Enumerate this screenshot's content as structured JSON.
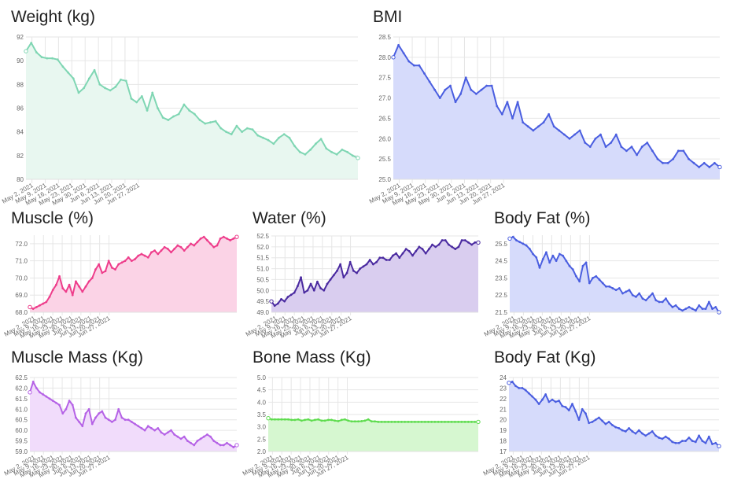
{
  "x_ticks": [
    "May 2, 2021",
    "May 9, 2021",
    "May 16, 2021",
    "May 23, 2021",
    "May 30, 2021",
    "Jun 6, 2021",
    "Jun 13, 2021",
    "Jun 20, 2021",
    "Jun 27, 2021"
  ],
  "chart_data": [
    {
      "id": "weight",
      "type": "area",
      "title": "Weight (kg)",
      "ylim": [
        80,
        92
      ],
      "yticks": [
        80,
        82,
        84,
        86,
        88,
        90,
        92
      ],
      "ytick_labels": [
        "80",
        "82",
        "84",
        "86",
        "88",
        "90",
        "92"
      ],
      "color": "#7fd6b3",
      "fill": "#e8f7f0",
      "x": [
        0,
        1,
        2,
        3,
        4,
        5,
        6,
        7,
        8,
        9,
        10,
        11,
        12,
        13,
        14,
        15,
        16,
        17,
        18,
        19,
        20,
        21,
        22,
        23,
        24,
        25,
        26,
        27,
        28,
        29,
        30,
        31,
        32,
        33,
        34,
        35,
        36,
        37,
        38,
        39,
        40,
        41,
        42,
        43,
        44,
        45,
        46,
        47,
        48,
        49,
        50,
        51,
        52,
        53,
        54,
        55,
        56,
        57,
        58,
        59,
        60,
        61,
        62,
        63
      ],
      "values": [
        90.8,
        91.5,
        90.7,
        90.3,
        90.2,
        90.2,
        90.1,
        89.5,
        89.0,
        88.5,
        87.3,
        87.7,
        88.5,
        89.2,
        88.0,
        87.7,
        87.5,
        87.8,
        88.4,
        88.3,
        86.8,
        86.5,
        87.0,
        85.8,
        87.3,
        86.0,
        85.2,
        85.0,
        85.3,
        85.5,
        86.3,
        85.8,
        85.5,
        85.0,
        84.7,
        84.8,
        84.9,
        84.3,
        84.0,
        83.8,
        84.5,
        84.0,
        84.3,
        84.2,
        83.7,
        83.5,
        83.3,
        83.0,
        83.5,
        83.8,
        83.5,
        82.8,
        82.3,
        82.1,
        82.5,
        83.0,
        83.4,
        82.6,
        82.3,
        82.1,
        82.5,
        82.3,
        82.0,
        81.8
      ]
    },
    {
      "id": "bmi",
      "type": "area",
      "title": "BMI",
      "ylim": [
        25.0,
        28.5
      ],
      "yticks": [
        25.0,
        25.5,
        26.0,
        26.5,
        27.0,
        27.5,
        28.0,
        28.5
      ],
      "ytick_labels": [
        "25.0",
        "25.5",
        "26.0",
        "26.5",
        "27.0",
        "27.5",
        "28.0",
        "28.5"
      ],
      "color": "#4a5ee0",
      "fill": "#d6dbfb",
      "x": [
        0,
        1,
        2,
        3,
        4,
        5,
        6,
        7,
        8,
        9,
        10,
        11,
        12,
        13,
        14,
        15,
        16,
        17,
        18,
        19,
        20,
        21,
        22,
        23,
        24,
        25,
        26,
        27,
        28,
        29,
        30,
        31,
        32,
        33,
        34,
        35,
        36,
        37,
        38,
        39,
        40,
        41,
        42,
        43,
        44,
        45,
        46,
        47,
        48,
        49,
        50,
        51,
        52,
        53,
        54,
        55,
        56,
        57,
        58,
        59,
        60,
        61,
        62,
        63
      ],
      "values": [
        28.0,
        28.3,
        28.1,
        27.9,
        27.8,
        27.8,
        27.6,
        27.4,
        27.2,
        27.0,
        27.2,
        27.3,
        26.9,
        27.1,
        27.5,
        27.2,
        27.1,
        27.2,
        27.3,
        27.3,
        26.8,
        26.6,
        26.9,
        26.5,
        26.9,
        26.4,
        26.3,
        26.2,
        26.3,
        26.4,
        26.6,
        26.3,
        26.2,
        26.1,
        26.0,
        26.1,
        26.2,
        25.9,
        25.8,
        26.0,
        26.1,
        25.8,
        25.9,
        26.1,
        25.8,
        25.7,
        25.8,
        25.6,
        25.8,
        25.9,
        25.7,
        25.5,
        25.4,
        25.4,
        25.5,
        25.7,
        25.7,
        25.5,
        25.4,
        25.3,
        25.4,
        25.3,
        25.4,
        25.3
      ]
    },
    {
      "id": "muscle",
      "type": "area",
      "title": "Muscle (%)",
      "ylim": [
        68.0,
        72.5
      ],
      "yticks": [
        68.0,
        69.0,
        70.0,
        71.0,
        72.0
      ],
      "ytick_labels": [
        "68.0",
        "69.0",
        "70.0",
        "71.0",
        "72.0"
      ],
      "color": "#ee3d8b",
      "fill": "#fbd3e6",
      "x": [
        0,
        1,
        2,
        3,
        4,
        5,
        6,
        7,
        8,
        9,
        10,
        11,
        12,
        13,
        14,
        15,
        16,
        17,
        18,
        19,
        20,
        21,
        22,
        23,
        24,
        25,
        26,
        27,
        28,
        29,
        30,
        31,
        32,
        33,
        34,
        35,
        36,
        37,
        38,
        39,
        40,
        41,
        42,
        43,
        44,
        45,
        46,
        47,
        48,
        49,
        50,
        51,
        52,
        53,
        54,
        55,
        56,
        57,
        58,
        59,
        60,
        61,
        62,
        63
      ],
      "values": [
        68.3,
        68.2,
        68.3,
        68.4,
        68.5,
        68.6,
        68.9,
        69.3,
        69.6,
        70.1,
        69.4,
        69.2,
        69.6,
        69.0,
        69.8,
        69.5,
        69.2,
        69.5,
        69.8,
        70.0,
        70.5,
        70.8,
        70.3,
        70.4,
        71.0,
        70.6,
        70.5,
        70.8,
        70.9,
        71.0,
        71.2,
        71.0,
        71.1,
        71.3,
        71.4,
        71.3,
        71.2,
        71.5,
        71.6,
        71.4,
        71.6,
        71.8,
        71.7,
        71.5,
        71.7,
        71.9,
        71.8,
        71.6,
        71.8,
        72.0,
        71.9,
        72.1,
        72.3,
        72.4,
        72.2,
        72.0,
        71.8,
        71.9,
        72.3,
        72.4,
        72.3,
        72.2,
        72.3,
        72.4
      ]
    },
    {
      "id": "water",
      "type": "area",
      "title": "Water (%)",
      "ylim": [
        49.0,
        52.5
      ],
      "yticks": [
        49.0,
        49.5,
        50.0,
        50.5,
        51.0,
        51.5,
        52.0,
        52.5
      ],
      "ytick_labels": [
        "49.0",
        "49.5",
        "50.0",
        "50.5",
        "51.0",
        "51.5",
        "52.0",
        "52.5"
      ],
      "color": "#4a2aa0",
      "fill": "#d9cdef",
      "x": [
        0,
        1,
        2,
        3,
        4,
        5,
        6,
        7,
        8,
        9,
        10,
        11,
        12,
        13,
        14,
        15,
        16,
        17,
        18,
        19,
        20,
        21,
        22,
        23,
        24,
        25,
        26,
        27,
        28,
        29,
        30,
        31,
        32,
        33,
        34,
        35,
        36,
        37,
        38,
        39,
        40,
        41,
        42,
        43,
        44,
        45,
        46,
        47,
        48,
        49,
        50,
        51,
        52,
        53,
        54,
        55,
        56,
        57,
        58,
        59,
        60,
        61,
        62,
        63
      ],
      "values": [
        49.5,
        49.3,
        49.4,
        49.6,
        49.5,
        49.7,
        49.8,
        49.9,
        50.2,
        50.6,
        49.9,
        50.0,
        50.3,
        50.0,
        50.4,
        50.1,
        50.0,
        50.3,
        50.5,
        50.7,
        50.9,
        51.2,
        50.6,
        50.8,
        51.3,
        50.9,
        50.8,
        51.0,
        51.1,
        51.2,
        51.4,
        51.2,
        51.3,
        51.5,
        51.5,
        51.4,
        51.4,
        51.6,
        51.7,
        51.5,
        51.7,
        51.9,
        51.8,
        51.6,
        51.8,
        52.0,
        51.9,
        51.7,
        51.9,
        52.1,
        52.0,
        52.1,
        52.3,
        52.3,
        52.1,
        52.0,
        51.9,
        52.0,
        52.3,
        52.3,
        52.2,
        52.1,
        52.2,
        52.2
      ]
    },
    {
      "id": "bodyfat",
      "type": "area",
      "title": "Body Fat (%)",
      "ylim": [
        21.5,
        26.0
      ],
      "yticks": [
        21.5,
        22.5,
        23.5,
        24.5,
        25.5
      ],
      "ytick_labels": [
        "21.5",
        "22.5",
        "23.5",
        "24.5",
        "25.5"
      ],
      "color": "#4a5ee0",
      "fill": "#d6dbfb",
      "x": [
        0,
        1,
        2,
        3,
        4,
        5,
        6,
        7,
        8,
        9,
        10,
        11,
        12,
        13,
        14,
        15,
        16,
        17,
        18,
        19,
        20,
        21,
        22,
        23,
        24,
        25,
        26,
        27,
        28,
        29,
        30,
        31,
        32,
        33,
        34,
        35,
        36,
        37,
        38,
        39,
        40,
        41,
        42,
        43,
        44,
        45,
        46,
        47,
        48,
        49,
        50,
        51,
        52,
        53,
        54,
        55,
        56,
        57,
        58,
        59,
        60,
        61,
        62,
        63
      ],
      "values": [
        25.8,
        25.9,
        25.7,
        25.6,
        25.5,
        25.4,
        25.2,
        24.9,
        24.7,
        24.1,
        24.6,
        25.0,
        24.4,
        24.8,
        24.5,
        24.9,
        24.8,
        24.5,
        24.2,
        24.0,
        23.6,
        23.3,
        24.2,
        24.4,
        23.2,
        23.5,
        23.6,
        23.4,
        23.2,
        23.0,
        23.0,
        22.9,
        22.8,
        22.9,
        22.6,
        22.7,
        22.8,
        22.5,
        22.4,
        22.6,
        22.3,
        22.2,
        22.4,
        22.6,
        22.2,
        22.1,
        22.1,
        22.3,
        22.0,
        21.8,
        21.9,
        21.7,
        21.6,
        21.7,
        21.8,
        21.7,
        21.6,
        21.9,
        21.7,
        21.7,
        22.1,
        21.7,
        21.8,
        21.5
      ]
    },
    {
      "id": "musclemass",
      "type": "area",
      "title": "Muscle Mass (Kg)",
      "ylim": [
        59.0,
        62.5
      ],
      "yticks": [
        59.0,
        59.5,
        60.0,
        60.5,
        61.0,
        61.5,
        62.0,
        62.5
      ],
      "ytick_labels": [
        "59.0",
        "59.5",
        "60.0",
        "60.5",
        "61.0",
        "61.5",
        "62.0",
        "62.5"
      ],
      "color": "#b562e6",
      "fill": "#f1dcfb",
      "x": [
        0,
        1,
        2,
        3,
        4,
        5,
        6,
        7,
        8,
        9,
        10,
        11,
        12,
        13,
        14,
        15,
        16,
        17,
        18,
        19,
        20,
        21,
        22,
        23,
        24,
        25,
        26,
        27,
        28,
        29,
        30,
        31,
        32,
        33,
        34,
        35,
        36,
        37,
        38,
        39,
        40,
        41,
        42,
        43,
        44,
        45,
        46,
        47,
        48,
        49,
        50,
        51,
        52,
        53,
        54,
        55,
        56,
        57,
        58,
        59,
        60,
        61,
        62,
        63
      ],
      "values": [
        61.8,
        62.3,
        62.0,
        61.8,
        61.7,
        61.6,
        61.5,
        61.4,
        61.3,
        61.2,
        60.8,
        61.0,
        61.4,
        61.2,
        60.6,
        60.4,
        60.2,
        60.8,
        61.0,
        60.3,
        60.6,
        60.8,
        60.9,
        60.6,
        60.5,
        60.4,
        60.5,
        61.0,
        60.6,
        60.5,
        60.5,
        60.4,
        60.3,
        60.2,
        60.1,
        60.0,
        60.2,
        60.1,
        60.0,
        60.1,
        59.9,
        59.8,
        59.9,
        60.0,
        59.8,
        59.7,
        59.6,
        59.7,
        59.5,
        59.4,
        59.3,
        59.5,
        59.6,
        59.7,
        59.8,
        59.7,
        59.5,
        59.4,
        59.3,
        59.3,
        59.4,
        59.3,
        59.2,
        59.3
      ]
    },
    {
      "id": "bonemass",
      "type": "area",
      "title": "Bone Mass (Kg)",
      "ylim": [
        2.0,
        5.0
      ],
      "yticks": [
        2.0,
        2.5,
        3.0,
        3.5,
        4.0,
        4.5,
        5.0
      ],
      "ytick_labels": [
        "2.0",
        "2.5",
        "3.0",
        "3.5",
        "4.0",
        "4.5",
        "5.0"
      ],
      "color": "#5edc4e",
      "fill": "#d6f7d0",
      "x": [
        0,
        1,
        2,
        3,
        4,
        5,
        6,
        7,
        8,
        9,
        10,
        11,
        12,
        13,
        14,
        15,
        16,
        17,
        18,
        19,
        20,
        21,
        22,
        23,
        24,
        25,
        26,
        27,
        28,
        29,
        30,
        31,
        32,
        33,
        34,
        35,
        36,
        37,
        38,
        39,
        40,
        41,
        42,
        43,
        44,
        45,
        46,
        47,
        48,
        49,
        50,
        51,
        52,
        53,
        54,
        55,
        56,
        57,
        58,
        59,
        60,
        61,
        62,
        63
      ],
      "values": [
        3.35,
        3.3,
        3.3,
        3.3,
        3.3,
        3.3,
        3.3,
        3.28,
        3.28,
        3.3,
        3.25,
        3.28,
        3.3,
        3.25,
        3.28,
        3.3,
        3.25,
        3.25,
        3.28,
        3.28,
        3.25,
        3.23,
        3.28,
        3.3,
        3.25,
        3.22,
        3.22,
        3.22,
        3.23,
        3.25,
        3.3,
        3.22,
        3.22,
        3.2,
        3.2,
        3.2,
        3.2,
        3.2,
        3.2,
        3.2,
        3.2,
        3.2,
        3.2,
        3.2,
        3.2,
        3.2,
        3.2,
        3.2,
        3.2,
        3.2,
        3.2,
        3.2,
        3.2,
        3.2,
        3.2,
        3.2,
        3.2,
        3.2,
        3.2,
        3.2,
        3.2,
        3.2,
        3.2,
        3.2
      ]
    },
    {
      "id": "bodyfatkg",
      "type": "area",
      "title": "Body Fat (Kg)",
      "ylim": [
        17,
        24
      ],
      "yticks": [
        17,
        18,
        19,
        20,
        21,
        22,
        23,
        24
      ],
      "ytick_labels": [
        "17",
        "18",
        "19",
        "20",
        "21",
        "22",
        "23",
        "24"
      ],
      "color": "#4a5ee0",
      "fill": "#d6dbfb",
      "x": [
        0,
        1,
        2,
        3,
        4,
        5,
        6,
        7,
        8,
        9,
        10,
        11,
        12,
        13,
        14,
        15,
        16,
        17,
        18,
        19,
        20,
        21,
        22,
        23,
        24,
        25,
        26,
        27,
        28,
        29,
        30,
        31,
        32,
        33,
        34,
        35,
        36,
        37,
        38,
        39,
        40,
        41,
        42,
        43,
        44,
        45,
        46,
        47,
        48,
        49,
        50,
        51,
        52,
        53,
        54,
        55,
        56,
        57,
        58,
        59,
        60,
        61,
        62,
        63
      ],
      "values": [
        23.5,
        23.6,
        23.2,
        23.0,
        23.0,
        22.8,
        22.5,
        22.2,
        21.9,
        21.5,
        21.9,
        22.4,
        21.7,
        21.9,
        21.7,
        21.8,
        21.3,
        21.2,
        20.9,
        21.5,
        20.8,
        20.0,
        21.0,
        20.6,
        19.7,
        19.8,
        20.0,
        20.2,
        19.9,
        19.6,
        19.8,
        19.5,
        19.3,
        19.2,
        19.0,
        18.9,
        19.2,
        18.9,
        18.7,
        19.0,
        18.7,
        18.5,
        18.7,
        18.9,
        18.5,
        18.3,
        18.2,
        18.4,
        18.2,
        17.9,
        17.8,
        17.8,
        18.0,
        18.0,
        18.3,
        18.0,
        17.9,
        18.5,
        18.0,
        17.8,
        18.4,
        17.7,
        17.8,
        17.5
      ]
    }
  ]
}
